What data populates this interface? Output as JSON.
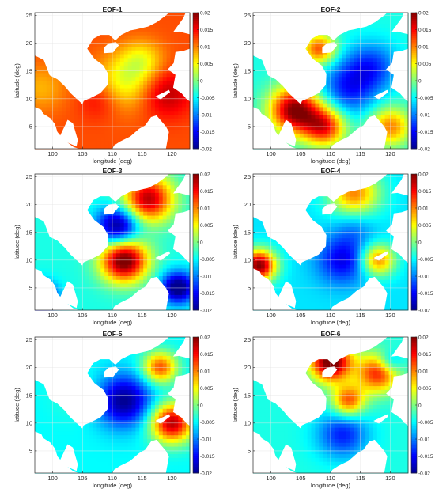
{
  "figure": {
    "colormap": [
      "#00008f",
      "#0000ff",
      "#0080ff",
      "#00ffff",
      "#80ff80",
      "#ffff00",
      "#ff8000",
      "#ff0000",
      "#800000"
    ],
    "land_color": "#ffffff",
    "grid_color": "#e6e6e6"
  },
  "chart_data": [
    {
      "type": "heatmap",
      "title": "EOF-1",
      "xlabel": "longitude (deg)",
      "ylabel": "latitude (deg)",
      "xlim": [
        97,
        123
      ],
      "ylim": [
        1,
        25.5
      ],
      "xticks": [
        100,
        105,
        110,
        115,
        120
      ],
      "yticks": [
        5,
        10,
        15,
        20,
        25
      ],
      "colorbar": {
        "range": [
          -0.02,
          0.02
        ],
        "ticks": [
          "0.02",
          "0.015",
          "0.01",
          "0.005",
          "0",
          "-0.005",
          "-0.01",
          "-0.015",
          "-0.02"
        ]
      },
      "base_value": 0.012,
      "features": [
        {
          "lon": 112,
          "lat": 13,
          "value": 0.004,
          "sigma": 3.5
        },
        {
          "lon": 115,
          "lat": 17,
          "value": 0.006,
          "sigma": 2.5
        },
        {
          "lon": 119,
          "lat": 11,
          "value": 0.018,
          "sigma": 3
        },
        {
          "lon": 108,
          "lat": 10,
          "value": 0.016,
          "sigma": 2.5
        },
        {
          "lon": 98,
          "lat": 12,
          "value": 0.008,
          "sigma": 3
        }
      ]
    },
    {
      "type": "heatmap",
      "title": "EOF-2",
      "xlabel": "longitude (deg)",
      "ylabel": "latitude (deg)",
      "xlim": [
        97,
        123
      ],
      "ylim": [
        1,
        25.5
      ],
      "xticks": [
        100,
        105,
        110,
        115,
        120
      ],
      "yticks": [
        5,
        10,
        15,
        20,
        25
      ],
      "colorbar": {
        "range": [
          -0.02,
          0.02
        ],
        "ticks": [
          "0.02",
          "0.015",
          "0.01",
          "0.005",
          "0",
          "-0.005",
          "-0.01",
          "-0.015",
          "-0.02"
        ]
      },
      "base_value": -0.004,
      "features": [
        {
          "lon": 113,
          "lat": 12,
          "value": -0.014,
          "sigma": 3.5
        },
        {
          "lon": 117,
          "lat": 16,
          "value": -0.012,
          "sigma": 3
        },
        {
          "lon": 104,
          "lat": 8,
          "value": 0.02,
          "sigma": 3
        },
        {
          "lon": 109,
          "lat": 5,
          "value": 0.014,
          "sigma": 2.5
        },
        {
          "lon": 120,
          "lat": 5,
          "value": 0.01,
          "sigma": 2.5
        },
        {
          "lon": 108,
          "lat": 19,
          "value": 0.012,
          "sigma": 2
        }
      ]
    },
    {
      "type": "heatmap",
      "title": "EOF-3",
      "xlabel": "longitude (deg)",
      "ylabel": "latitude (deg)",
      "xlim": [
        97,
        123
      ],
      "ylim": [
        1,
        25.5
      ],
      "xticks": [
        100,
        105,
        110,
        115,
        120
      ],
      "yticks": [
        5,
        10,
        15,
        20,
        25
      ],
      "colorbar": {
        "range": [
          -0.02,
          0.02
        ],
        "ticks": [
          "0.02",
          "0.015",
          "0.01",
          "0.005",
          "0",
          "-0.005",
          "-0.01",
          "-0.015",
          "-0.02"
        ]
      },
      "base_value": -0.004,
      "features": [
        {
          "lon": 112,
          "lat": 10,
          "value": 0.022,
          "sigma": 2.8
        },
        {
          "lon": 116,
          "lat": 21,
          "value": 0.018,
          "sigma": 3
        },
        {
          "lon": 111,
          "lat": 16,
          "value": -0.022,
          "sigma": 2.5
        },
        {
          "lon": 121,
          "lat": 5,
          "value": -0.022,
          "sigma": 2
        },
        {
          "lon": 98,
          "lat": 3,
          "value": -0.02,
          "sigma": 2
        }
      ]
    },
    {
      "type": "heatmap",
      "title": "EOF-4",
      "xlabel": "longitude (deg)",
      "ylabel": "latitude (deg)",
      "xlim": [
        97,
        123
      ],
      "ylim": [
        1,
        25.5
      ],
      "xticks": [
        100,
        105,
        110,
        115,
        120
      ],
      "yticks": [
        5,
        10,
        15,
        20,
        25
      ],
      "colorbar": {
        "range": [
          -0.02,
          0.02
        ],
        "ticks": [
          "0.02",
          "0.015",
          "0.01",
          "0.005",
          "0",
          "-0.005",
          "-0.01",
          "-0.015",
          "-0.02"
        ]
      },
      "base_value": -0.006,
      "features": [
        {
          "lon": 112,
          "lat": 10,
          "value": -0.016,
          "sigma": 3
        },
        {
          "lon": 114,
          "lat": 16,
          "value": -0.01,
          "sigma": 2.5
        },
        {
          "lon": 98,
          "lat": 9,
          "value": 0.02,
          "sigma": 2
        },
        {
          "lon": 114,
          "lat": 22,
          "value": 0.01,
          "sigma": 3
        },
        {
          "lon": 118,
          "lat": 10,
          "value": 0.01,
          "sigma": 2
        }
      ]
    },
    {
      "type": "heatmap",
      "title": "EOF-5",
      "xlabel": "longitude (deg)",
      "ylabel": "latitude (deg)",
      "xlim": [
        97,
        123
      ],
      "ylim": [
        1,
        25.5
      ],
      "xticks": [
        100,
        105,
        110,
        115,
        120
      ],
      "yticks": [
        5,
        10,
        15,
        20,
        25
      ],
      "colorbar": {
        "range": [
          -0.02,
          0.02
        ],
        "ticks": [
          "0.02",
          "0.015",
          "0.01",
          "0.005",
          "0",
          "-0.005",
          "-0.01",
          "-0.015",
          "-0.02"
        ]
      },
      "base_value": -0.005,
      "features": [
        {
          "lon": 112,
          "lat": 14,
          "value": -0.02,
          "sigma": 3.2
        },
        {
          "lon": 120,
          "lat": 10,
          "value": 0.018,
          "sigma": 2.5
        },
        {
          "lon": 118,
          "lat": 20,
          "value": 0.012,
          "sigma": 2
        },
        {
          "lon": 104,
          "lat": 15,
          "value": -0.003,
          "sigma": 3
        }
      ]
    },
    {
      "type": "heatmap",
      "title": "EOF-6",
      "xlabel": "longitude (deg)",
      "ylabel": "latitude (deg)",
      "xlim": [
        97,
        123
      ],
      "ylim": [
        1,
        25.5
      ],
      "xticks": [
        100,
        105,
        110,
        115,
        120
      ],
      "yticks": [
        5,
        10,
        15,
        20,
        25
      ],
      "colorbar": {
        "range": [
          -0.02,
          0.02
        ],
        "ticks": [
          "0.02",
          "0.015",
          "0.01",
          "0.005",
          "0",
          "-0.005",
          "-0.01",
          "-0.015",
          "-0.02"
        ]
      },
      "base_value": -0.004,
      "features": [
        {
          "lon": 110,
          "lat": 21,
          "value": 0.022,
          "sigma": 2.5
        },
        {
          "lon": 118,
          "lat": 19,
          "value": 0.014,
          "sigma": 2.5
        },
        {
          "lon": 113,
          "lat": 14,
          "value": 0.012,
          "sigma": 2
        },
        {
          "lon": 112,
          "lat": 8,
          "value": -0.014,
          "sigma": 3
        },
        {
          "lon": 120,
          "lat": 21,
          "value": -0.012,
          "sigma": 1.5
        }
      ]
    }
  ]
}
